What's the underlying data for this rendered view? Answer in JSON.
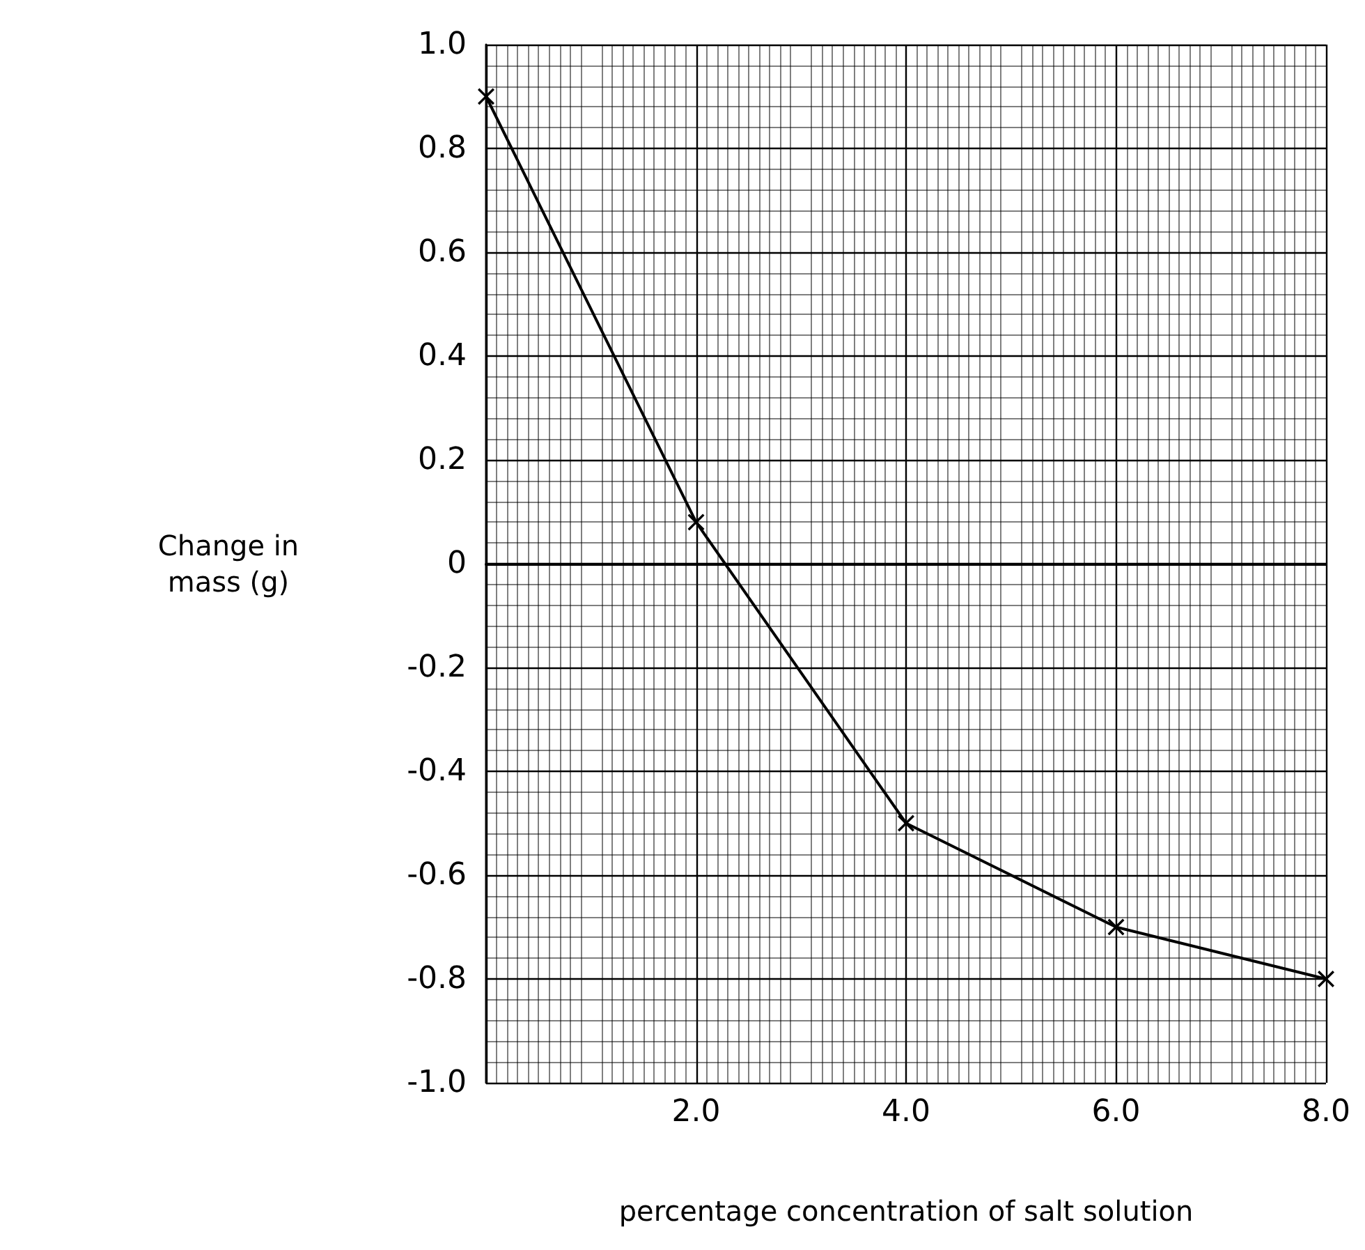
{
  "chart_data": {
    "type": "line",
    "xlabel": "percentage concentration of salt solution",
    "ylabel": "Change in\nmass (g)",
    "x": [
      0,
      2,
      4,
      6,
      8
    ],
    "values": [
      0.9,
      0.08,
      -0.5,
      -0.7,
      -0.8
    ],
    "color": "#000000",
    "marker": "cross",
    "line_style": "solid",
    "grid": true,
    "xlim": [
      0,
      8
    ],
    "xticks": [
      {
        "value": 0,
        "label": null
      },
      {
        "value": 2,
        "label": "2.0"
      },
      {
        "value": 4,
        "label": "4.0"
      },
      {
        "value": 6,
        "label": "6.0"
      },
      {
        "value": 8,
        "label": "8.0"
      }
    ],
    "ylim": [
      -1,
      1
    ],
    "yticks": [
      {
        "value": -1,
        "label": "-1.0"
      },
      -0.8,
      -0.6,
      -0.4,
      -0.2,
      0,
      0.2,
      0.4,
      0.6,
      0.8,
      {
        "value": 1,
        "label": "1.0"
      }
    ]
  }
}
